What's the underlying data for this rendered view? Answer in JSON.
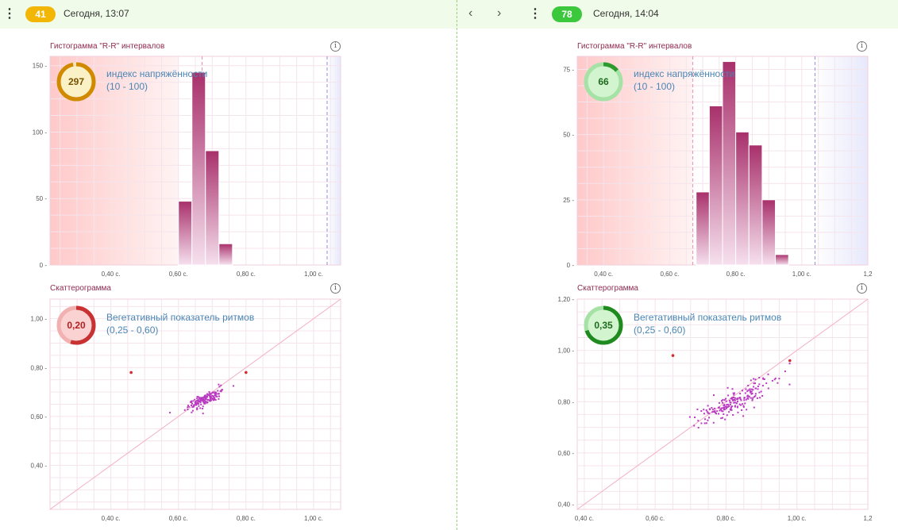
{
  "left": {
    "header": {
      "badge": "41",
      "badge_color": "#f2b705",
      "datetime": "Сегодня, 13:07"
    },
    "histogram": {
      "title": "Гистограмма \"R-R\" интервалов",
      "indicator": {
        "value": "297",
        "label": "индекс напряжённости",
        "range": "(10 - 100)",
        "fraction": 0.97,
        "ring_color": "#d18a00",
        "track_color": "#f3e2b6",
        "fill": "#fbf1c6",
        "text_color": "#7a5200"
      },
      "chart_data": {
        "type": "bar",
        "x_ticks": [
          "0,40 с.",
          "0,60 с.",
          "0,80 с.",
          "1,00 с."
        ],
        "x_tick_values": [
          0.4,
          0.6,
          0.8,
          1.0
        ],
        "y_ticks": [
          "0",
          "50",
          "100",
          "150"
        ],
        "y_tick_values": [
          0,
          50,
          100,
          150
        ],
        "xlim": [
          0.22,
          1.08
        ],
        "ylim": [
          0,
          157
        ],
        "bin_width": 0.04,
        "bars": [
          {
            "x": 0.6,
            "value": 48
          },
          {
            "x": 0.64,
            "value": 145
          },
          {
            "x": 0.68,
            "value": 86
          },
          {
            "x": 0.72,
            "value": 16
          }
        ],
        "red_zone_end": 0.6,
        "pink_line": 0.67,
        "blue_line": 1.04,
        "blue_zone_start": 1.04
      }
    },
    "scatter": {
      "title": "Скаттерограмма",
      "indicator": {
        "value": "0,20",
        "label": "Вегетативный показатель ритмов",
        "range": "(0,25 - 0,60)",
        "fraction": 0.55,
        "ring_color": "#c83232",
        "track_color": "#f2b1b1",
        "fill": "#fbd2d2",
        "text_color": "#b02020"
      },
      "chart_data": {
        "type": "scatter",
        "x_ticks": [
          "0,40 с.",
          "0,60 с.",
          "0,80 с.",
          "1,00 с."
        ],
        "x_tick_values": [
          0.4,
          0.6,
          0.8,
          1.0
        ],
        "y_ticks": [
          "0,40",
          "0,60",
          "0,80",
          "1,00"
        ],
        "y_tick_values": [
          0.4,
          0.6,
          0.8,
          1.0
        ],
        "xlim": [
          0.22,
          1.08
        ],
        "ylim": [
          0.22,
          1.08
        ],
        "cluster": {
          "cx": 0.68,
          "cy": 0.67,
          "sx": 0.025,
          "sy": 0.022,
          "n": 170,
          "seed": 7
        },
        "outliers": [
          [
            0.46,
            0.78
          ],
          [
            0.8,
            0.78
          ]
        ]
      }
    }
  },
  "right": {
    "header": {
      "badge": "78",
      "badge_color": "#3cc83c",
      "datetime": "Сегодня, 14:04",
      "prev": "‹",
      "next": "›"
    },
    "histogram": {
      "title": "Гистограмма \"R-R\" интервалов",
      "indicator": {
        "value": "66",
        "label": "индекс напряжённости",
        "range": "(10 - 100)",
        "fraction": 0.14,
        "ring_color": "#2e9a2e",
        "track_color": "#a6e2a6",
        "fill": "#d2f4cf",
        "text_color": "#1e6b1e"
      },
      "chart_data": {
        "type": "bar",
        "x_ticks": [
          "0,40 с.",
          "0,60 с.",
          "0,80 с.",
          "1,00 с.",
          "1,2"
        ],
        "x_tick_values": [
          0.4,
          0.6,
          0.8,
          1.0,
          1.2
        ],
        "y_ticks": [
          "0",
          "25",
          "50",
          "75"
        ],
        "y_tick_values": [
          0,
          25,
          50,
          75
        ],
        "xlim": [
          0.32,
          1.2
        ],
        "ylim": [
          0,
          80
        ],
        "bin_width": 0.04,
        "bars": [
          {
            "x": 0.68,
            "value": 28
          },
          {
            "x": 0.72,
            "value": 61
          },
          {
            "x": 0.76,
            "value": 78
          },
          {
            "x": 0.8,
            "value": 51
          },
          {
            "x": 0.84,
            "value": 46
          },
          {
            "x": 0.88,
            "value": 25
          },
          {
            "x": 0.92,
            "value": 4
          }
        ],
        "red_zone_end": 0.67,
        "pink_line": 0.67,
        "blue_line": 1.04,
        "blue_zone_start": 1.04
      }
    },
    "scatter": {
      "title": "Скаттерограмма",
      "indicator": {
        "value": "0,35",
        "label": "Вегетативный показатель ритмов",
        "range": "(0,25 - 0,60)",
        "fraction": 0.7,
        "ring_color": "#1f8a1f",
        "track_color": "#a6e2a6",
        "fill": "#d2f4cf",
        "text_color": "#1e6b1e"
      },
      "chart_data": {
        "type": "scatter",
        "x_ticks": [
          "0,40 с.",
          "0,60 с.",
          "0,80 с.",
          "1,00 с.",
          "1,2"
        ],
        "x_tick_values": [
          0.4,
          0.6,
          0.8,
          1.0,
          1.2
        ],
        "y_ticks": [
          "0,40",
          "0,60",
          "0,80",
          "1,00",
          "1,20"
        ],
        "y_tick_values": [
          0.4,
          0.6,
          0.8,
          1.0,
          1.2
        ],
        "xlim": [
          0.38,
          1.2
        ],
        "ylim": [
          0.38,
          1.2
        ],
        "cluster": {
          "cx": 0.82,
          "cy": 0.8,
          "sx": 0.055,
          "sy": 0.05,
          "n": 200,
          "seed": 11
        },
        "outliers": [
          [
            0.65,
            0.98
          ],
          [
            0.98,
            0.96
          ]
        ]
      }
    }
  }
}
